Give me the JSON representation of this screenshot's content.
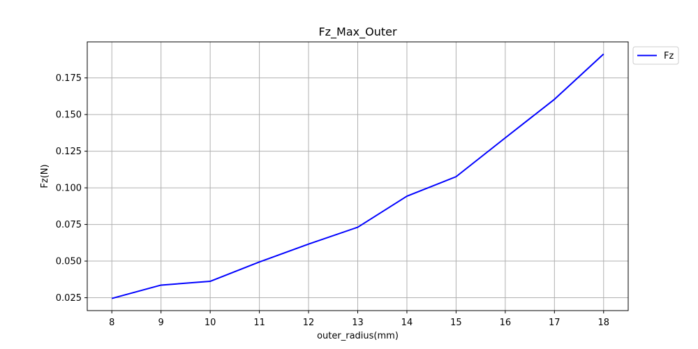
{
  "chart_data": {
    "type": "line",
    "title": "Fz_Max_Outer",
    "xlabel": "outer_radius(mm)",
    "ylabel": "Fz(N)",
    "x": [
      8,
      9,
      10,
      11,
      12,
      13,
      14,
      15,
      16,
      17,
      18
    ],
    "series": [
      {
        "name": "Fz",
        "color": "#0000ff",
        "values": [
          0.0245,
          0.0336,
          0.0362,
          0.0494,
          0.0616,
          0.0731,
          0.0943,
          0.1076,
          0.1341,
          0.1604,
          0.1913
        ]
      }
    ],
    "xlim": [
      7.5,
      18.5
    ],
    "ylim": [
      0.0162,
      0.1996
    ],
    "xticks": [
      8,
      9,
      10,
      11,
      12,
      13,
      14,
      15,
      16,
      17,
      18
    ],
    "yticks": [
      0.025,
      0.05,
      0.075,
      0.1,
      0.125,
      0.15,
      0.175
    ],
    "ytick_labels": [
      "0.025",
      "0.050",
      "0.075",
      "0.100",
      "0.125",
      "0.150",
      "0.175"
    ],
    "grid": true,
    "legend_position": "outside-top-right"
  }
}
